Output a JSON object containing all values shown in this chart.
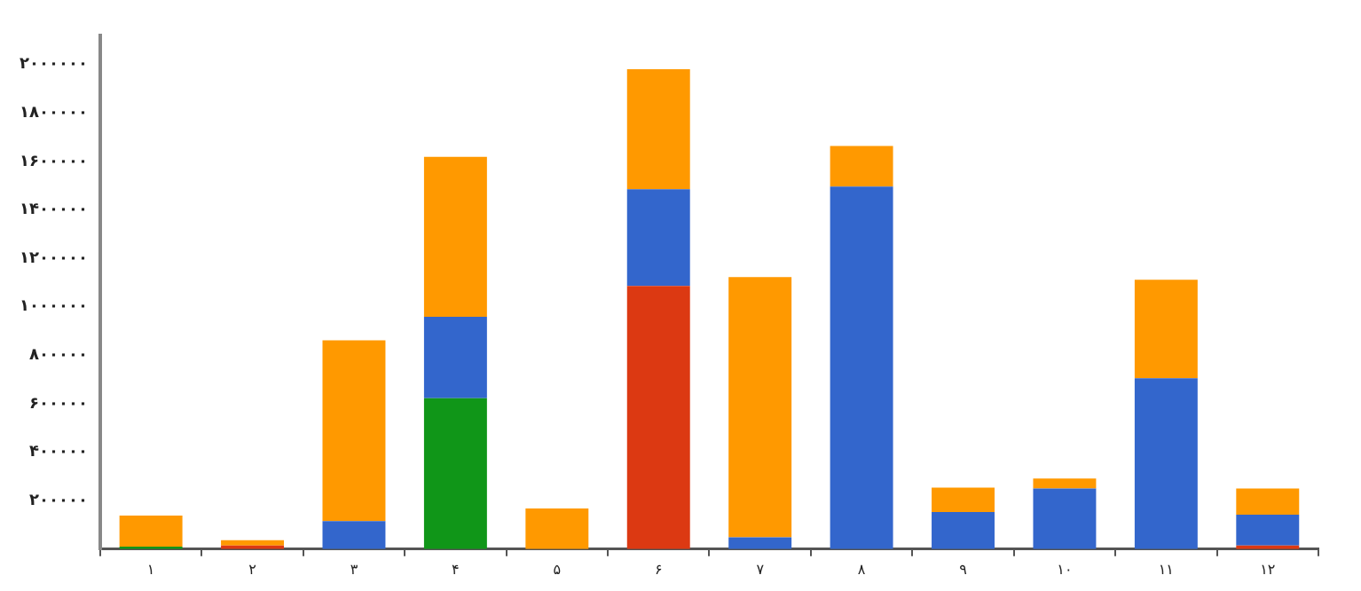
{
  "chart_data": {
    "type": "bar",
    "stacked": true,
    "categories": [
      "۱",
      "۲",
      "۳",
      "۴",
      "۵",
      "۶",
      "۷",
      "۸",
      "۹",
      "۱۰",
      "۱۱",
      "۱۲"
    ],
    "series": [
      {
        "color": "#dc3912",
        "values": [
          null,
          15000,
          null,
          null,
          null,
          1086000,
          null,
          null,
          null,
          null,
          null,
          15000
        ]
      },
      {
        "color": "#109618",
        "values": [
          10000,
          null,
          null,
          623000,
          null,
          null,
          null,
          null,
          null,
          null,
          null,
          null
        ]
      },
      {
        "color": "#3366cc",
        "values": [
          null,
          null,
          116000,
          336000,
          null,
          399000,
          49000,
          1496000,
          153000,
          250000,
          705000,
          127000
        ]
      },
      {
        "color": "#ff9900",
        "values": [
          128000,
          22000,
          746000,
          660000,
          168000,
          496000,
          1074000,
          168000,
          101000,
          41000,
          407000,
          108000
        ]
      }
    ],
    "ylim": [
      0,
      2120000
    ],
    "yticks": [
      {
        "value": 0,
        "label": null
      },
      {
        "value": 200000,
        "label": "۲۰۰۰۰۰"
      },
      {
        "value": 400000,
        "label": "۴۰۰۰۰۰"
      },
      {
        "value": 600000,
        "label": "۶۰۰۰۰۰"
      },
      {
        "value": 800000,
        "label": "۸۰۰۰۰۰"
      },
      {
        "value": 1000000,
        "label": "۱۰۰۰۰۰۰"
      },
      {
        "value": 1200000,
        "label": "۱۲۰۰۰۰۰"
      },
      {
        "value": 1400000,
        "label": "۱۴۰۰۰۰۰"
      },
      {
        "value": 1600000,
        "label": "۱۶۰۰۰۰۰"
      },
      {
        "value": 1800000,
        "label": "۱۸۰۰۰۰۰"
      },
      {
        "value": 2000000,
        "label": "۲۰۰۰۰۰۰"
      }
    ],
    "grid": false,
    "legend": false
  }
}
